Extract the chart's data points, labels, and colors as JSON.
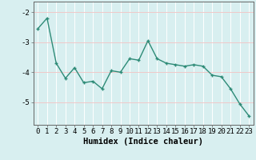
{
  "x": [
    0,
    1,
    2,
    3,
    4,
    5,
    6,
    7,
    8,
    9,
    10,
    11,
    12,
    13,
    14,
    15,
    16,
    17,
    18,
    19,
    20,
    21,
    22,
    23
  ],
  "y": [
    -2.55,
    -2.2,
    -3.7,
    -4.2,
    -3.85,
    -4.35,
    -4.3,
    -4.55,
    -3.95,
    -4.0,
    -3.55,
    -3.6,
    -2.95,
    -3.55,
    -3.7,
    -3.75,
    -3.8,
    -3.75,
    -3.8,
    -4.1,
    -4.15,
    -4.55,
    -5.05,
    -5.45
  ],
  "line_color": "#2e8b77",
  "marker": "+",
  "marker_size": 3.5,
  "linewidth": 1.0,
  "xlabel": "Humidex (Indice chaleur)",
  "xlim": [
    -0.5,
    23.5
  ],
  "ylim": [
    -5.75,
    -1.65
  ],
  "yticks": [
    -5,
    -4,
    -3,
    -2
  ],
  "xticks": [
    0,
    1,
    2,
    3,
    4,
    5,
    6,
    7,
    8,
    9,
    10,
    11,
    12,
    13,
    14,
    15,
    16,
    17,
    18,
    19,
    20,
    21,
    22,
    23
  ],
  "bg_color": "#d8eff0",
  "grid_color_v": "#ffffff",
  "grid_color_h": "#f0c8c8",
  "spine_color": "#666666",
  "tick_label_fontsize": 6.5,
  "xlabel_fontsize": 7.5
}
